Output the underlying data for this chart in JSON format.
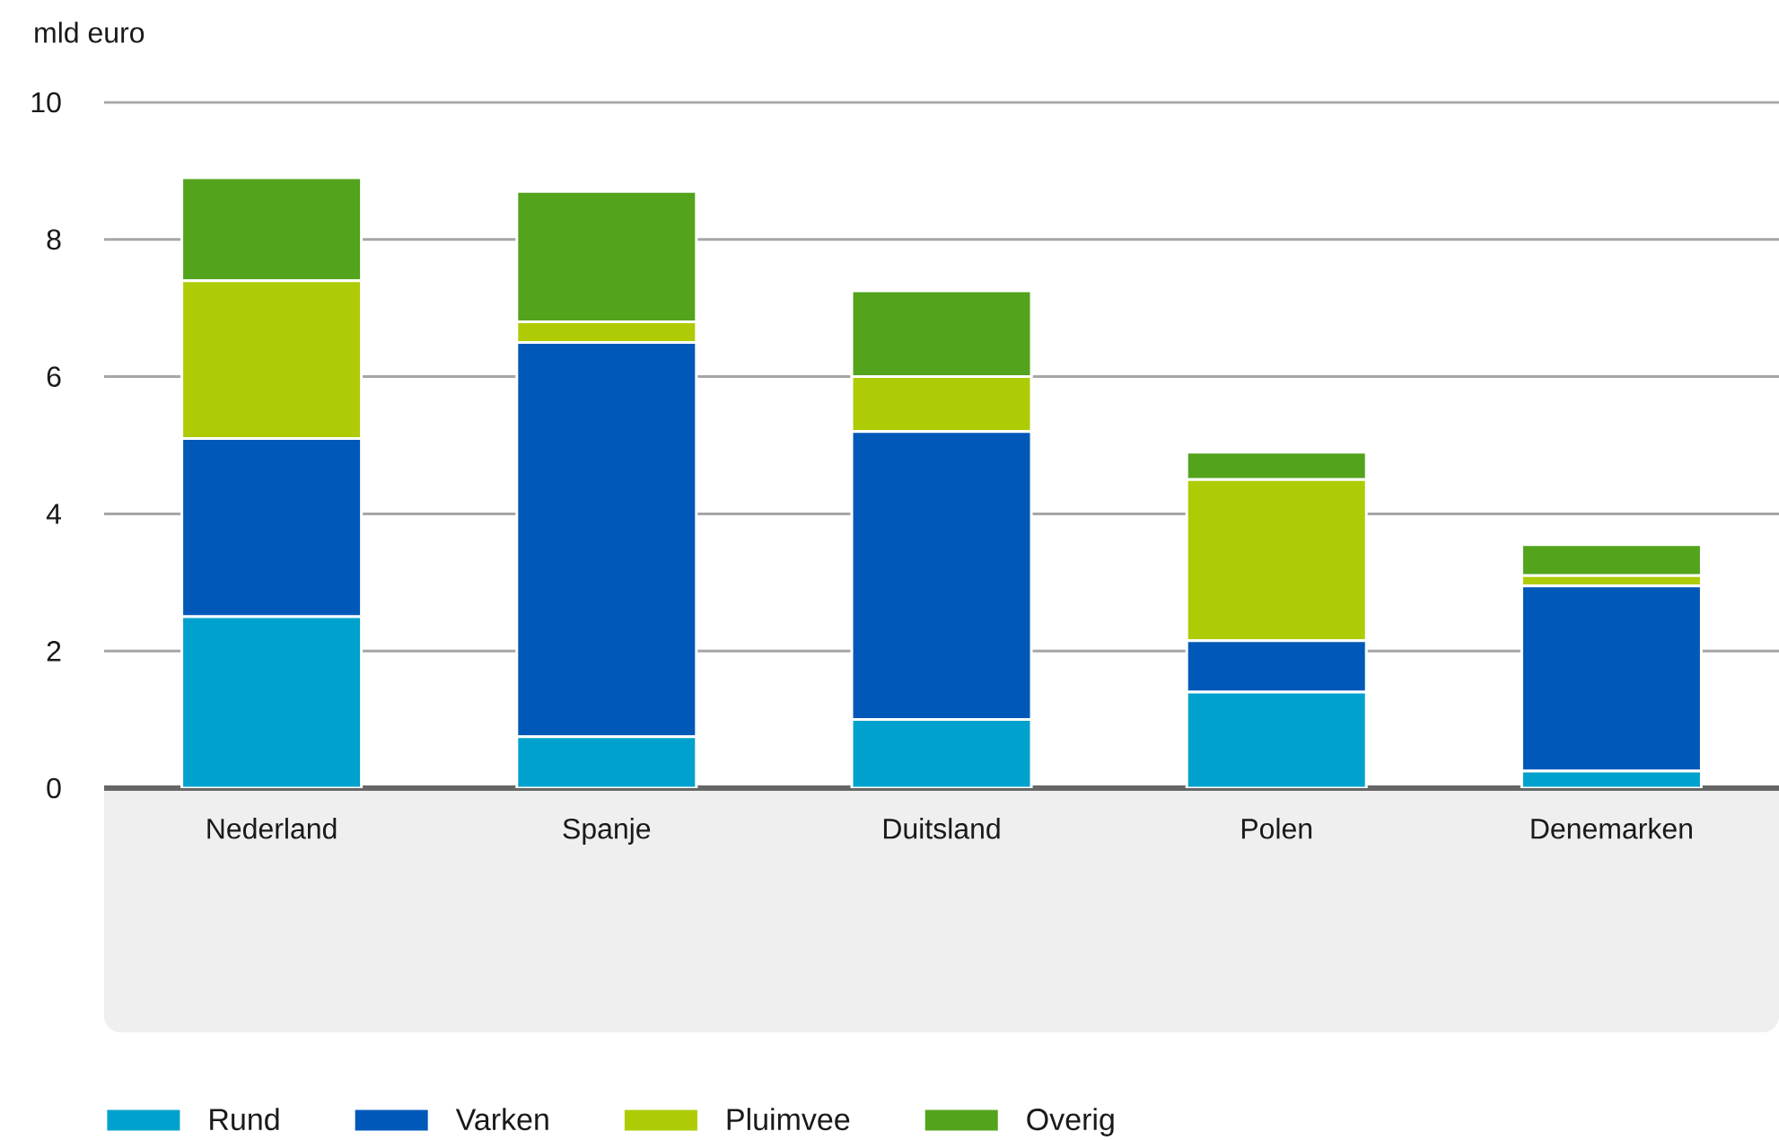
{
  "chart_data": {
    "type": "bar",
    "stacked": true,
    "ylabel": "mld euro",
    "categories": [
      "Nederland",
      "Spanje",
      "Duitsland",
      "Polen",
      "Denemarken"
    ],
    "series": [
      {
        "name": "Rund",
        "color": "#00a1cd",
        "values": [
          2.5,
          0.75,
          1.0,
          1.4,
          0.25
        ]
      },
      {
        "name": "Varken",
        "color": "#0058b8",
        "values": [
          2.6,
          5.75,
          4.2,
          0.75,
          2.7
        ]
      },
      {
        "name": "Pluimvee",
        "color": "#afcb05",
        "values": [
          2.3,
          0.3,
          0.8,
          2.35,
          0.15
        ]
      },
      {
        "name": "Overig",
        "color": "#53a31d",
        "values": [
          1.5,
          1.9,
          1.25,
          0.4,
          0.45
        ]
      }
    ],
    "ylim": [
      0,
      10
    ],
    "yticks": [
      0,
      2,
      4,
      6,
      8,
      10
    ],
    "grid": "y",
    "legend": "bottom"
  }
}
